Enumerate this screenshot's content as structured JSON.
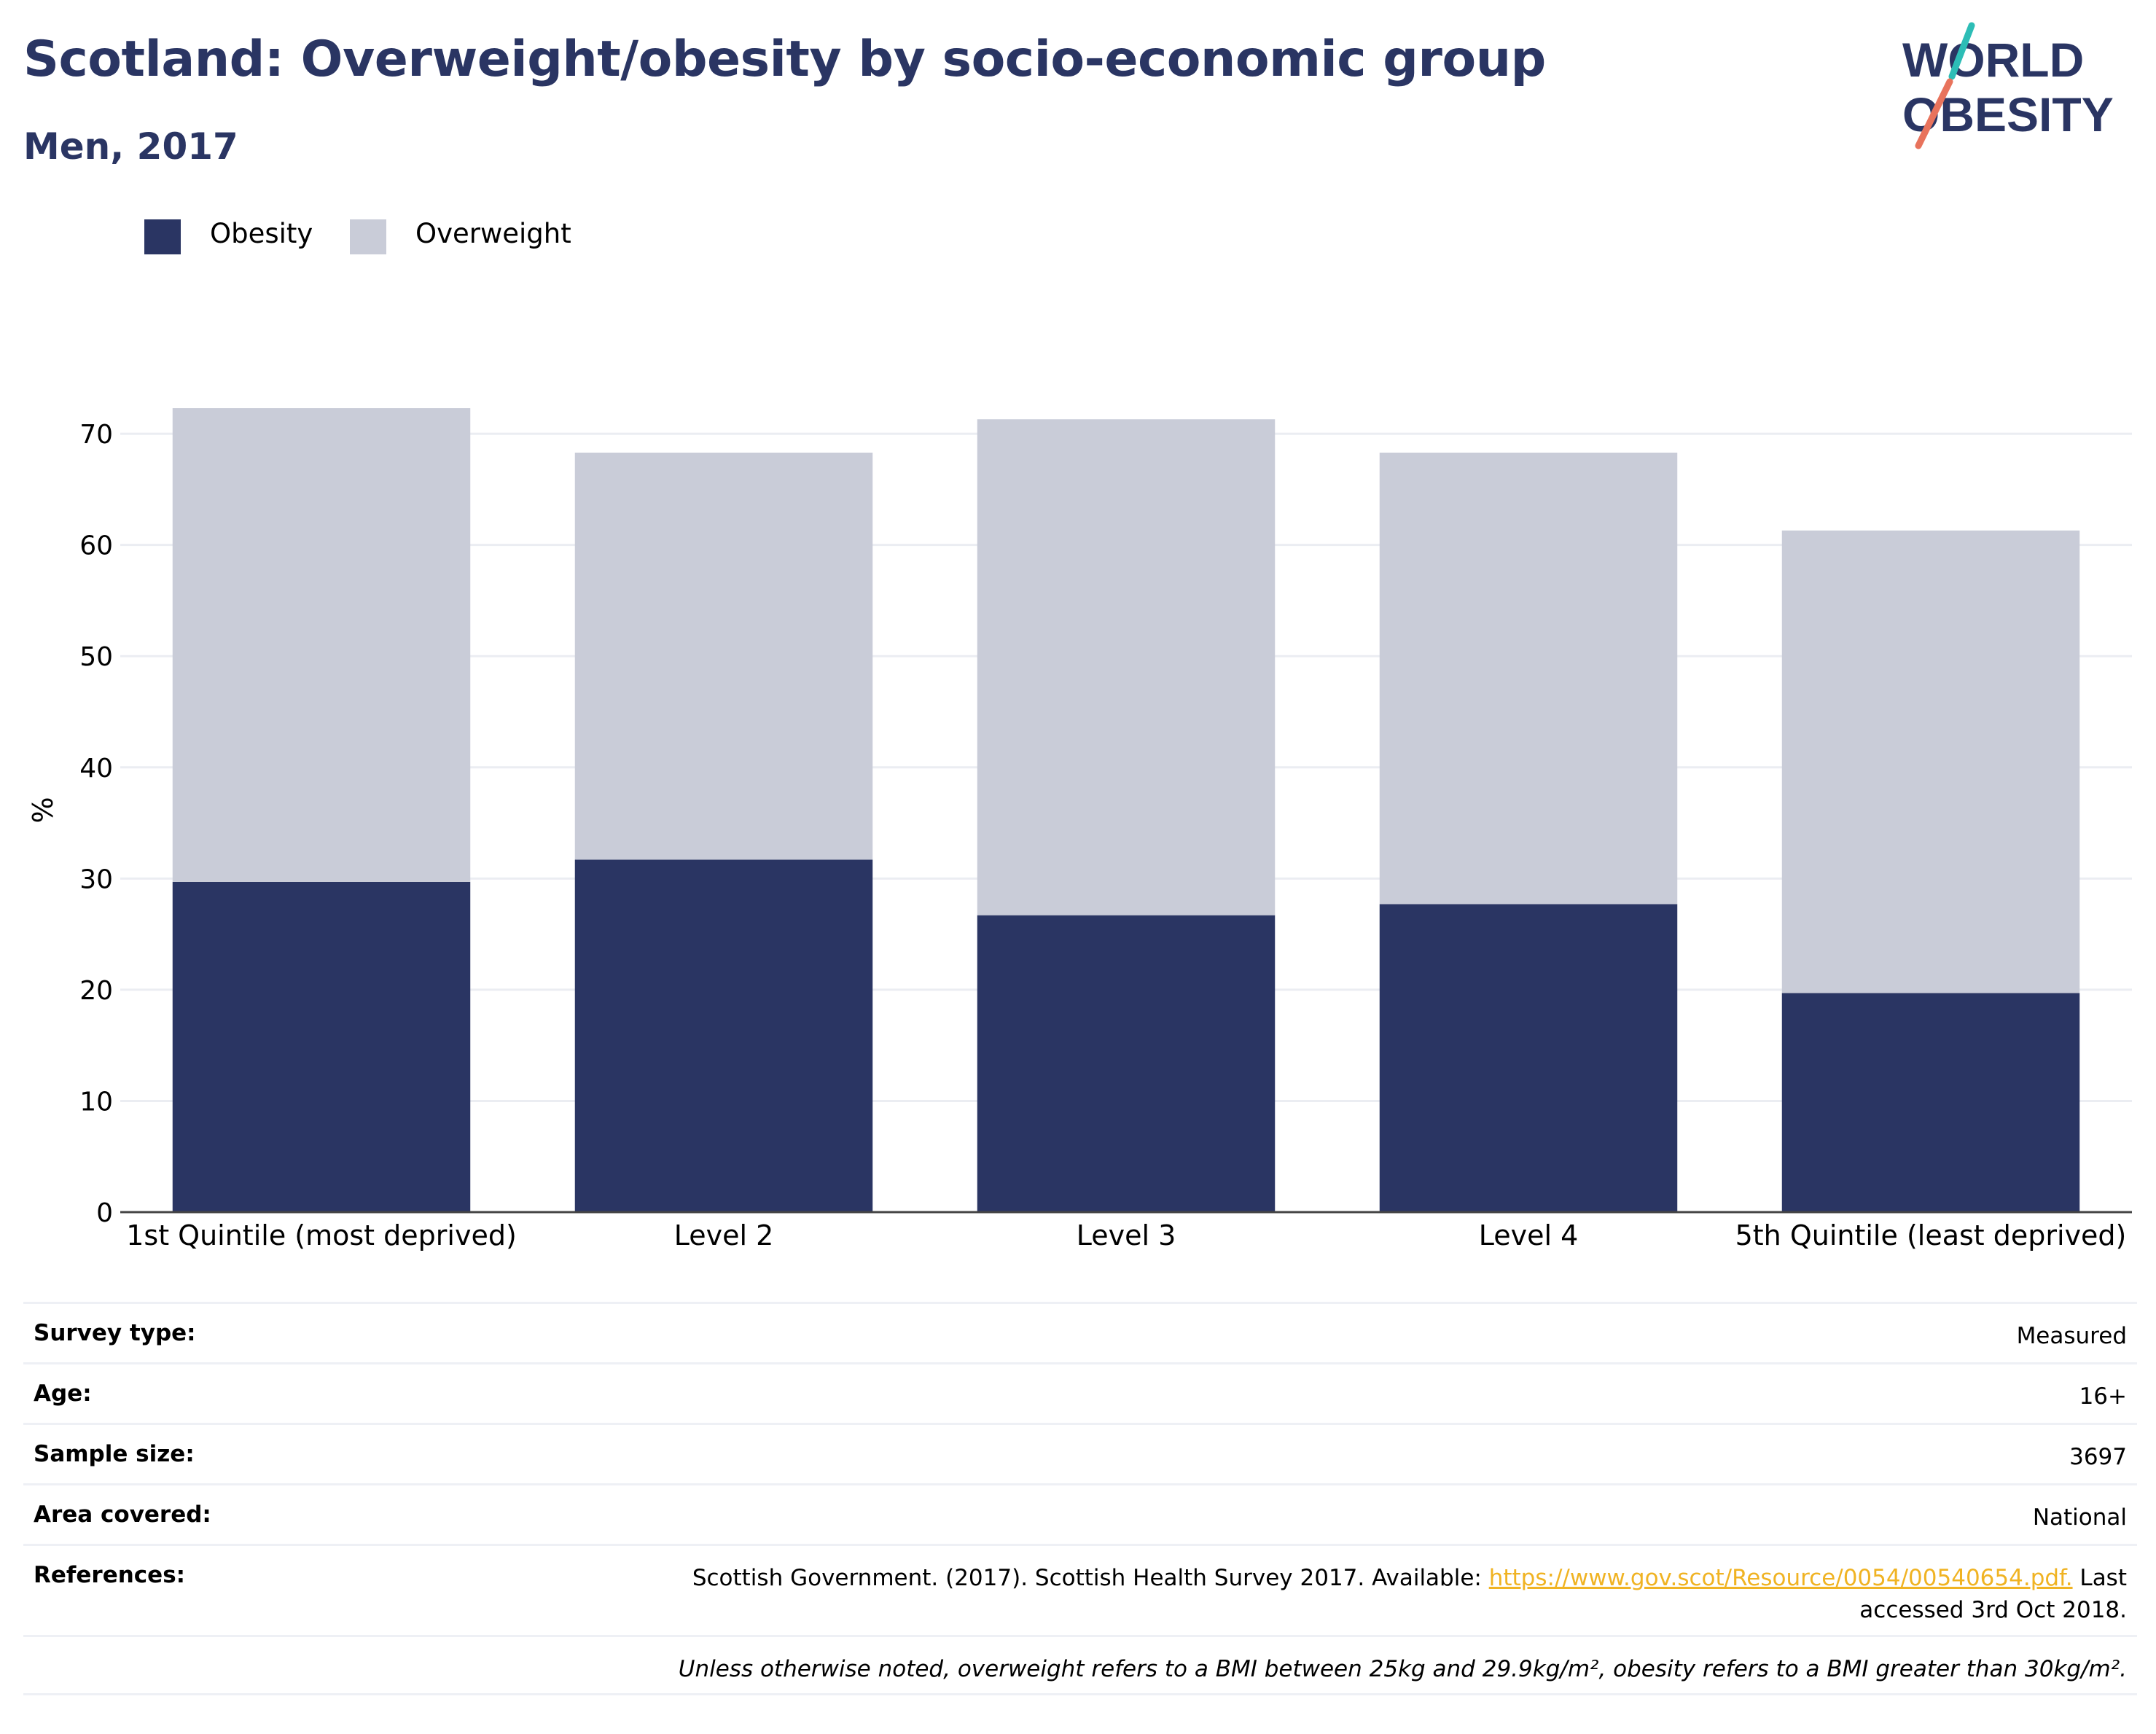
{
  "title": "Scotland: Overweight/obesity by socio-economic group",
  "subtitle": "Men, 2017",
  "logo": {
    "line1": "WORLD",
    "line2": "OBESITY"
  },
  "colors": {
    "obesity": "#2a3563",
    "overweight": "#c9ccd8",
    "title": "#2a3563",
    "link": "#f0b323",
    "grid": "#ebedf2"
  },
  "chart_data": {
    "type": "bar",
    "stacked": true,
    "categories": [
      "1st Quintile (most deprived)",
      "Level 2",
      "Level 3",
      "Level 4",
      "5th Quintile (least deprived)"
    ],
    "series": [
      {
        "name": "Obesity",
        "values": [
          29.7,
          31.7,
          26.7,
          27.7,
          19.7
        ]
      },
      {
        "name": "Overweight",
        "values": [
          42.6,
          36.6,
          44.6,
          40.6,
          41.6
        ]
      }
    ],
    "ylabel": "%",
    "ylim": [
      0,
      72.3
    ],
    "yticks": [
      0,
      10,
      20,
      30,
      40,
      50,
      60,
      70
    ],
    "grid": true,
    "legend": "top-left"
  },
  "info": {
    "survey_type": {
      "label": "Survey type:",
      "value": "Measured"
    },
    "age": {
      "label": "Age:",
      "value": "16+"
    },
    "sample_size": {
      "label": "Sample size:",
      "value": "3697"
    },
    "area": {
      "label": "Area covered:",
      "value": "National"
    },
    "references": {
      "label": "References:",
      "text_before": "Scottish Government. (2017). Scottish Health Survey 2017. Available: ",
      "link": "https://www.gov.scot/Resource/0054/00540654.pdf.",
      "text_after_line1": " Last",
      "text_after_line2": "accessed 3rd Oct 2018."
    },
    "note": "Unless otherwise noted, overweight refers to a BMI between 25kg and 29.9kg/m², obesity refers to a BMI greater than 30kg/m²."
  }
}
